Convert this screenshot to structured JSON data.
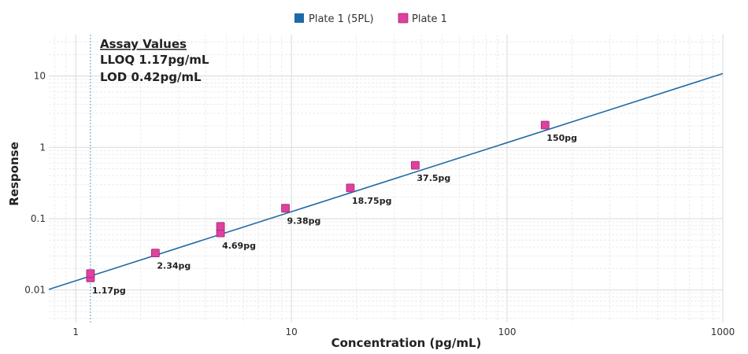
{
  "chart_data": {
    "type": "scatter",
    "xlabel": "Concentration (pg/mL)",
    "ylabel": "Response",
    "x_scale": "log",
    "y_scale": "log",
    "xlim": [
      0.75,
      1000
    ],
    "ylim": [
      0.0035,
      38
    ],
    "grid": true,
    "legend_position": "top-center",
    "x_ticks": [
      {
        "value": 1,
        "label": "1"
      },
      {
        "value": 10,
        "label": "10"
      },
      {
        "value": 100,
        "label": "100"
      },
      {
        "value": 1000,
        "label": "1000"
      }
    ],
    "y_ticks": [
      {
        "value": 0.01,
        "label": "0.01"
      },
      {
        "value": 0.1,
        "label": "0.1"
      },
      {
        "value": 1,
        "label": "1"
      },
      {
        "value": 10,
        "label": "10"
      }
    ],
    "series": [
      {
        "name": "Plate 1 (5PL)",
        "kind": "line",
        "color": "#1f6aa5",
        "x": [
          0.75,
          1000
        ],
        "y": [
          0.0102,
          10.8
        ]
      },
      {
        "name": "Plate 1",
        "kind": "markers",
        "color": "#e040a0",
        "x": [
          1.17,
          1.17,
          2.34,
          4.69,
          4.69,
          9.38,
          18.75,
          37.5,
          150
        ],
        "y": [
          0.0148,
          0.017,
          0.033,
          0.063,
          0.078,
          0.14,
          0.27,
          0.56,
          2.05
        ]
      }
    ],
    "point_labels": [
      {
        "x": 1.17,
        "y": 0.0148,
        "text": "1.17pg"
      },
      {
        "x": 2.34,
        "y": 0.033,
        "text": "2.34pg"
      },
      {
        "x": 4.69,
        "y": 0.063,
        "text": "4.69pg"
      },
      {
        "x": 9.38,
        "y": 0.14,
        "text": "9.38pg"
      },
      {
        "x": 18.75,
        "y": 0.27,
        "text": "18.75pg"
      },
      {
        "x": 37.5,
        "y": 0.56,
        "text": "37.5pg"
      },
      {
        "x": 150,
        "y": 2.05,
        "text": "150pg"
      }
    ],
    "reference_line": {
      "x": 1.17,
      "color": "#5aa0c8",
      "style": "dashed"
    },
    "annotation": {
      "title": "Assay Values",
      "lines": [
        "LLOQ 1.17pg/mL",
        "LOD 0.42pg/mL"
      ]
    }
  }
}
